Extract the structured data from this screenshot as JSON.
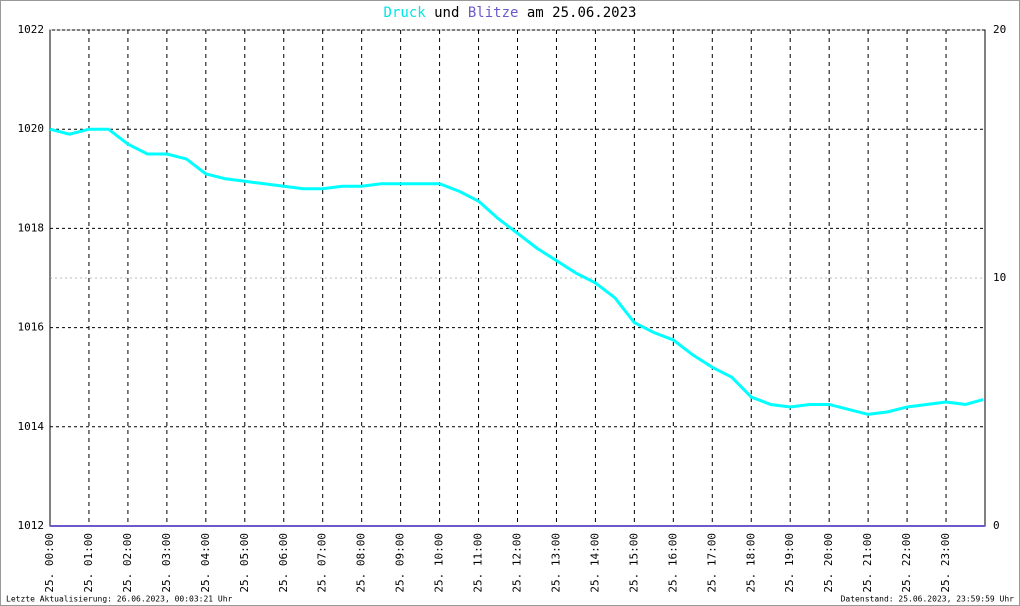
{
  "chart_data": {
    "type": "line",
    "title_connector": "und",
    "title_date": "am 25.06.2023",
    "footer_left": "Letzte Aktualisierung: 26.06.2023, 00:03:21 Uhr",
    "footer_right": "Datenstand: 25.06.2023, 23:59:59 Uhr",
    "xlim": [
      0,
      24
    ],
    "xticks": [
      {
        "value": 0,
        "label": "25. 00:00"
      },
      {
        "value": 1,
        "label": "25. 01:00"
      },
      {
        "value": 2,
        "label": "25. 02:00"
      },
      {
        "value": 3,
        "label": "25. 03:00"
      },
      {
        "value": 4,
        "label": "25. 04:00"
      },
      {
        "value": 5,
        "label": "25. 05:00"
      },
      {
        "value": 6,
        "label": "25. 06:00"
      },
      {
        "value": 7,
        "label": "25. 07:00"
      },
      {
        "value": 8,
        "label": "25. 08:00"
      },
      {
        "value": 9,
        "label": "25. 09:00"
      },
      {
        "value": 10,
        "label": "25. 10:00"
      },
      {
        "value": 11,
        "label": "25. 11:00"
      },
      {
        "value": 12,
        "label": "25. 12:00"
      },
      {
        "value": 13,
        "label": "25. 13:00"
      },
      {
        "value": 14,
        "label": "25. 14:00"
      },
      {
        "value": 15,
        "label": "25. 15:00"
      },
      {
        "value": 16,
        "label": "25. 16:00"
      },
      {
        "value": 17,
        "label": "25. 17:00"
      },
      {
        "value": 18,
        "label": "25. 18:00"
      },
      {
        "value": 19,
        "label": "25. 19:00"
      },
      {
        "value": 20,
        "label": "25. 20:00"
      },
      {
        "value": 21,
        "label": "25. 21:00"
      },
      {
        "value": 22,
        "label": "25. 22:00"
      },
      {
        "value": 23,
        "label": "25. 23:00"
      }
    ],
    "ylim": [
      1012,
      1022
    ],
    "yticks": [
      1012,
      1014,
      1016,
      1018,
      1020,
      1022
    ],
    "y2lim": [
      0,
      20
    ],
    "y2ticks": [
      0,
      10,
      20
    ],
    "grid": true,
    "series": [
      {
        "name": "Druck",
        "color": "#00ffff",
        "x": [
          0,
          0.5,
          1,
          1.5,
          2,
          2.5,
          3,
          3.5,
          4,
          4.5,
          5,
          5.5,
          6,
          6.5,
          7,
          7.5,
          8,
          8.5,
          9,
          9.5,
          10,
          10.5,
          11,
          11.5,
          12,
          12.5,
          13,
          13.5,
          14,
          14.5,
          15,
          15.5,
          16,
          16.5,
          17,
          17.5,
          18,
          18.5,
          19,
          19.5,
          20,
          20.5,
          21,
          21.5,
          22,
          22.5,
          23,
          23.5,
          23.95
        ],
        "values": [
          1020.0,
          1019.9,
          1020.0,
          1020.0,
          1019.7,
          1019.5,
          1019.5,
          1019.4,
          1019.1,
          1019.0,
          1018.95,
          1018.9,
          1018.85,
          1018.8,
          1018.8,
          1018.85,
          1018.85,
          1018.9,
          1018.9,
          1018.9,
          1018.9,
          1018.75,
          1018.55,
          1018.2,
          1017.9,
          1017.6,
          1017.35,
          1017.1,
          1016.9,
          1016.6,
          1016.1,
          1015.9,
          1015.75,
          1015.45,
          1015.2,
          1015.0,
          1014.6,
          1014.45,
          1014.4,
          1014.45,
          1014.45,
          1014.35,
          1014.25,
          1014.3,
          1014.4,
          1014.45,
          1014.5,
          1014.45,
          1014.55
        ]
      },
      {
        "name": "Blitze",
        "color": "#6a5acd",
        "axis": "y2",
        "x": [
          0,
          24
        ],
        "values": [
          0,
          0
        ]
      }
    ]
  }
}
